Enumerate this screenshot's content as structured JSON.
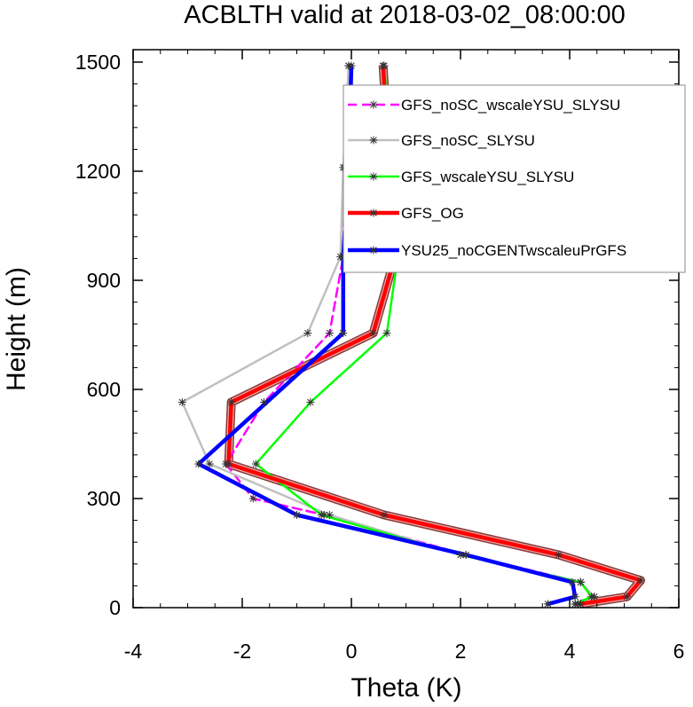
{
  "chart_data": {
    "type": "line",
    "title": "ACBLTH valid at 2018-03-02_08:00:00",
    "xlabel": "Theta (K)",
    "ylabel": "Height (m)",
    "xlim": [
      -4,
      6
    ],
    "ylim": [
      0,
      1500
    ],
    "xticks": [
      "-4",
      "-2",
      "0",
      "2",
      "4",
      "6"
    ],
    "yticks": [
      "0",
      "300",
      "600",
      "900",
      "1200",
      "1500"
    ],
    "grid": false,
    "legend_position": "top-right",
    "series": [
      {
        "name": "GFS_noSC_wscaleYSU_SLYSU",
        "color": "#ff00ff",
        "dash": true,
        "width": 2.5,
        "x": [
          4.15,
          4.45,
          4.2,
          2.1,
          -0.5,
          -1.8,
          -2.3,
          -1.6,
          -0.4,
          -0.15,
          -0.12,
          -0.05
        ],
        "y": [
          10,
          30,
          70,
          145,
          255,
          300,
          395,
          565,
          755,
          965,
          1210,
          1490
        ]
      },
      {
        "name": "GFS_noSC_SLYSU",
        "color": "#c0c0c0",
        "dash": false,
        "width": 2.5,
        "x": [
          4.1,
          4.45,
          4.2,
          2.0,
          -0.4,
          -2.6,
          -3.1,
          -0.8,
          -0.2,
          -0.15,
          -0.05
        ],
        "y": [
          10,
          30,
          70,
          145,
          255,
          395,
          565,
          755,
          965,
          1210,
          1490
        ]
      },
      {
        "name": "GFS_wscaleYSU_SLYSU",
        "color": "#00ff00",
        "dash": false,
        "width": 2.5,
        "x": [
          4.1,
          4.4,
          4.2,
          2.0,
          -0.55,
          -1.75,
          -0.75,
          0.65,
          0.85,
          0.75,
          0.6
        ],
        "y": [
          10,
          30,
          70,
          145,
          255,
          395,
          565,
          755,
          965,
          1210,
          1490
        ]
      },
      {
        "name": "GFS_OG",
        "color": "#ff0000",
        "dash": false,
        "width": 4.5,
        "band": true,
        "x": [
          4.2,
          5.05,
          5.3,
          3.8,
          0.6,
          -2.25,
          -2.2,
          0.4,
          0.8,
          0.7,
          0.58
        ],
        "y": [
          10,
          30,
          75,
          145,
          255,
          395,
          565,
          755,
          965,
          1210,
          1490
        ]
      },
      {
        "name": "YSU25_noCGENTwscaleuPrGFS",
        "color": "#0000ff",
        "dash": false,
        "width": 4.5,
        "x": [
          3.6,
          4.1,
          4.05,
          2.1,
          -1.0,
          -2.8,
          -0.15,
          -0.15,
          -0.05,
          0.0
        ],
        "y": [
          10,
          30,
          70,
          145,
          255,
          395,
          755,
          965,
          1210,
          1490
        ]
      }
    ]
  }
}
